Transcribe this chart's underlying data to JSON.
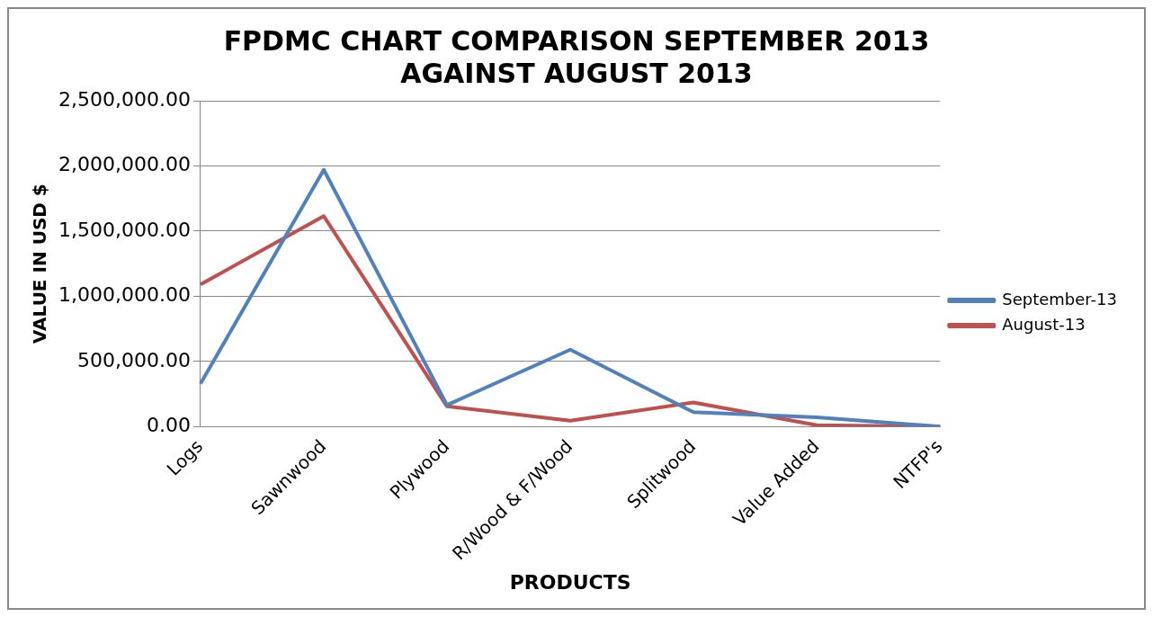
{
  "chart_data": {
    "type": "line",
    "title": [
      "FPDMC CHART COMPARISON SEPTEMBER 2013",
      "AGAINST AUGUST 2013"
    ],
    "xlabel": "PRODUCTS",
    "ylabel": "VALUE IN USD $",
    "categories": [
      "Logs",
      "Sawnwood",
      "Plywood",
      "R/Wood & F/Wood",
      "Splitwood",
      "Value Added",
      "NTFP's"
    ],
    "series": [
      {
        "name": "September-13",
        "color": "#4f81bd",
        "values": [
          330000,
          1970000,
          165000,
          590000,
          110000,
          70000,
          0
        ]
      },
      {
        "name": "August-13",
        "color": "#c0504d",
        "values": [
          1090000,
          1615000,
          155000,
          45000,
          185000,
          10000,
          0
        ]
      }
    ],
    "ylim": [
      0,
      2500000
    ],
    "yticks": [
      {
        "value": 0,
        "label": "0.00"
      },
      {
        "value": 500000,
        "label": "500,000.00"
      },
      {
        "value": 1000000,
        "label": "1,000,000.00"
      },
      {
        "value": 1500000,
        "label": "1,500,000.00"
      },
      {
        "value": 2000000,
        "label": "2,000,000.00"
      },
      {
        "value": 2500000,
        "label": "2,500,000.00"
      }
    ],
    "grid": "y",
    "legend": "right",
    "marker": "none",
    "line_style": "solid"
  }
}
